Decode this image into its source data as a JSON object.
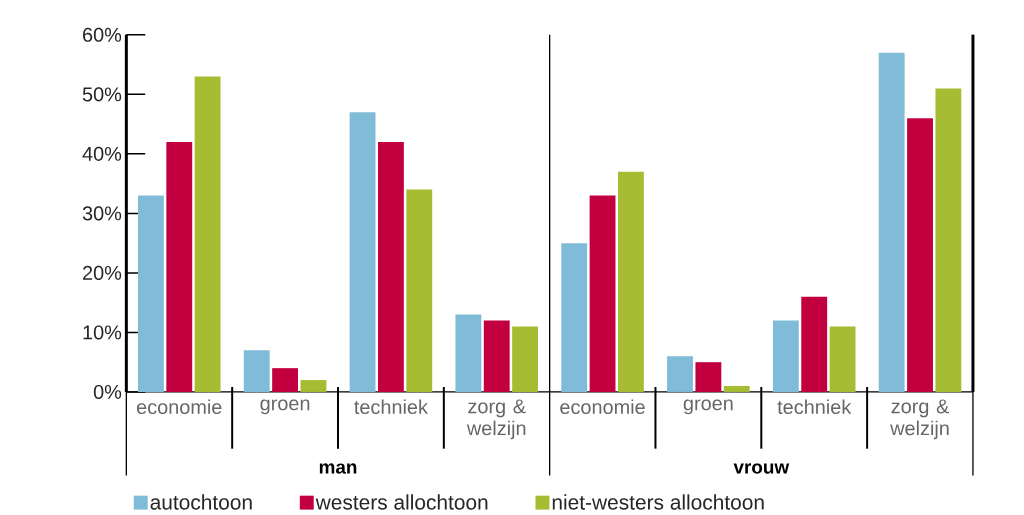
{
  "chart_data": {
    "type": "bar",
    "categories": [
      "economie",
      "groen",
      "techniek",
      "zorg & welzijn",
      "economie",
      "groen",
      "techniek",
      "zorg & welzijn"
    ],
    "series": [
      {
        "name": "autochtoon",
        "color": "#80bcd8",
        "values": [
          33,
          7,
          47,
          13,
          25,
          6,
          12,
          57
        ]
      },
      {
        "name": "westers allochtoon",
        "color": "#c20040",
        "values": [
          42,
          4,
          42,
          12,
          33,
          5,
          16,
          46
        ]
      },
      {
        "name": "niet-westers allochtoon",
        "color": "#a6bd33",
        "values": [
          53,
          2,
          34,
          11,
          37,
          1,
          11,
          51
        ]
      }
    ],
    "ylim": [
      0,
      60
    ],
    "yticks": [
      {
        "value": 0,
        "label": "0%"
      },
      {
        "value": 10,
        "label": "10%"
      },
      {
        "value": 20,
        "label": "20%"
      },
      {
        "value": 30,
        "label": "30%"
      },
      {
        "value": 40,
        "label": "40%"
      },
      {
        "value": 50,
        "label": "50%"
      },
      {
        "value": 60,
        "label": "60%"
      }
    ],
    "annotations": [
      "man",
      "vrouw"
    ],
    "legend": "bottom"
  }
}
